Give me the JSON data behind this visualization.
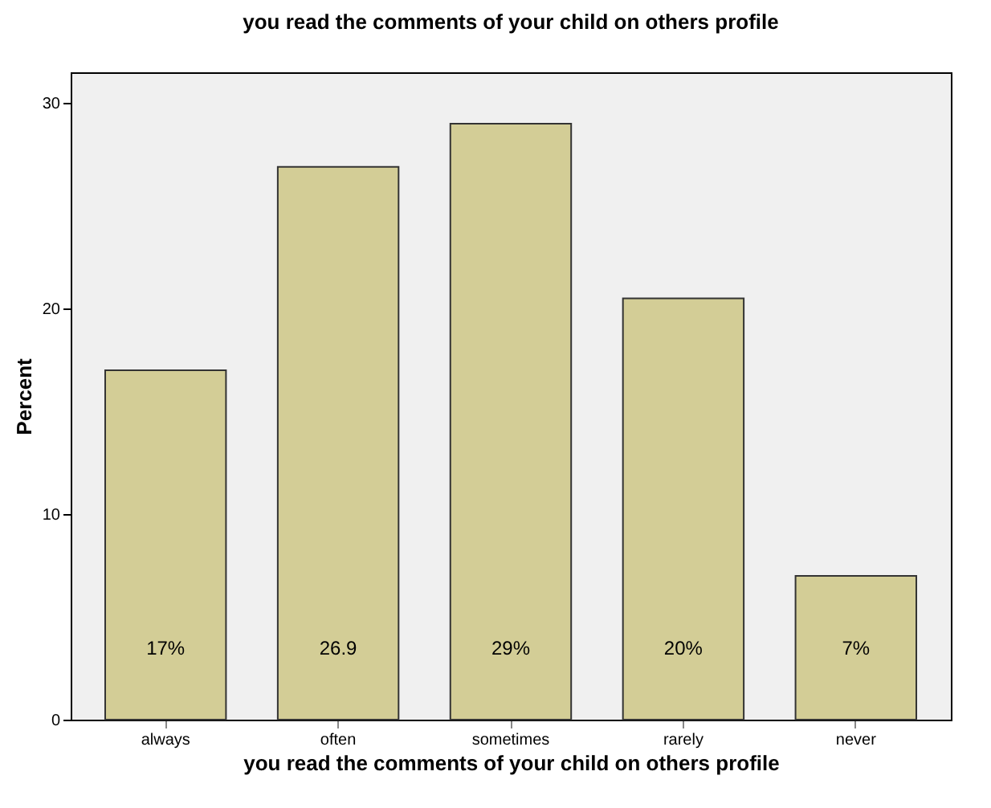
{
  "chart_data": {
    "type": "bar",
    "title": "you read the comments of your child on others profile",
    "xlabel": "you read the comments of your child on others profile",
    "ylabel": "Percent",
    "categories": [
      "always",
      "often",
      "sometimes",
      "rarely",
      "never"
    ],
    "values": [
      17,
      26.9,
      29,
      20.5,
      7
    ],
    "value_labels": [
      "17%",
      "26.9",
      "29%",
      "20%",
      "7%"
    ],
    "color": "#d3cd96",
    "ylim": [
      0,
      31.5
    ],
    "yticks": [
      0,
      10,
      20,
      30
    ],
    "grid": false
  }
}
